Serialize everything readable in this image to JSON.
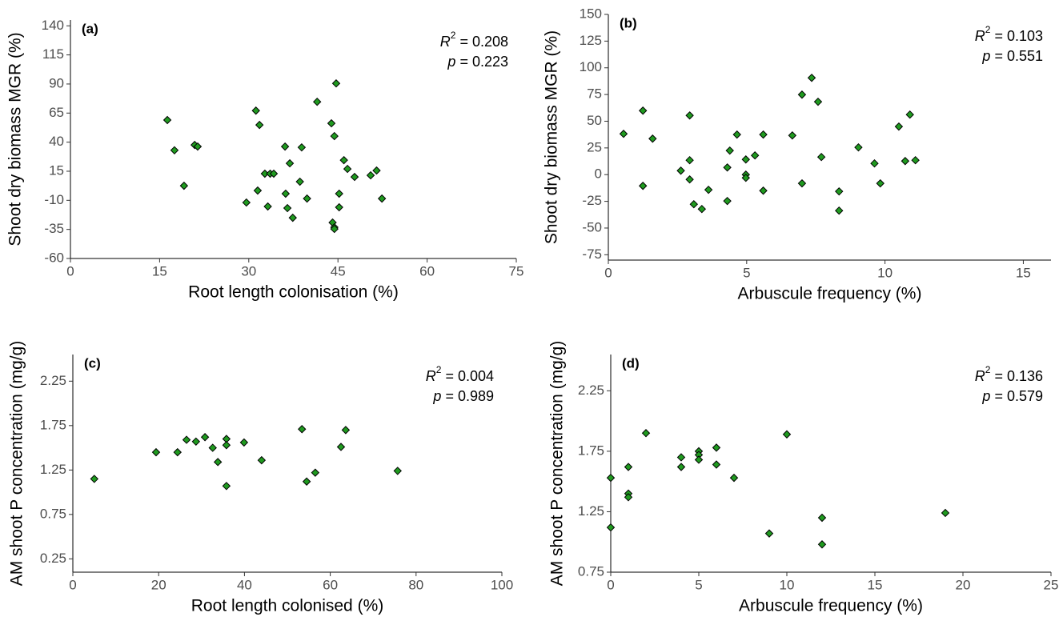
{
  "chart_data": [
    {
      "type": "scatter",
      "panel_label": "(a)",
      "x_label": "Root length colonisation (%)",
      "y_label": "Shoot dry biomass MGR (%)",
      "color": "#1f9a1f",
      "x": [
        16.3,
        17.5,
        19.1,
        20.9,
        21.4,
        29.6,
        31.2,
        31.5,
        31.8,
        32.7,
        33.2,
        33.6,
        34.2,
        36.1,
        36.2,
        36.5,
        36.9,
        37.4,
        38.6,
        38.9,
        39.8,
        41.5,
        43.9,
        44.1,
        44.4,
        44.4,
        44.4,
        44.7,
        45.2,
        45.2,
        46.0,
        46.6,
        47.8,
        50.5,
        51.5,
        52.4
      ],
      "values": [
        59,
        33,
        2.5,
        37.6,
        36.2,
        -11.9,
        67.1,
        -1.6,
        54.8,
        12.9,
        -15.3,
        12.9,
        12.9,
        36.2,
        -4.3,
        -16.7,
        21.8,
        -25,
        6,
        35.5,
        -8.5,
        74.7,
        56.2,
        -29.1,
        45.2,
        -33.2,
        -34.6,
        90.5,
        -4.3,
        -16,
        24.5,
        17,
        10.1,
        11.5,
        15.6,
        -8.5
      ],
      "xlim": [
        0,
        75
      ],
      "ylim": [
        -60,
        145
      ],
      "xticks": [
        0,
        15,
        30,
        45,
        60,
        75
      ],
      "yticks": [
        -60,
        -35,
        -10,
        15,
        40,
        65,
        90,
        115,
        140
      ],
      "stats": {
        "r_symbol": "R",
        "r_exponent": "2",
        "r_text": "= 0.208",
        "p_symbol": "p",
        "p_text": "= 0.223"
      }
    },
    {
      "type": "scatter",
      "panel_label": "(b)",
      "x_label": "Arbuscule frequency (%)",
      "y_label": "Shoot dry biomass MGR (%)",
      "color": "#1f9a1f",
      "x": [
        0.55,
        1.25,
        1.25,
        1.6,
        2.62,
        2.94,
        2.94,
        2.94,
        3.09,
        3.38,
        3.62,
        4.3,
        4.3,
        4.39,
        4.65,
        4.97,
        4.97,
        4.97,
        5.3,
        5.6,
        5.6,
        6.65,
        7.0,
        7.0,
        7.35,
        7.58,
        7.7,
        8.34,
        8.34,
        9.04,
        9.62,
        9.83,
        10.5,
        10.73,
        10.9,
        11.1
      ],
      "values": [
        38.2,
        59.9,
        -10.5,
        33.7,
        3.7,
        13.5,
        55.4,
        -4.5,
        -27.7,
        -32.2,
        -14.2,
        -24.7,
        6.7,
        22.5,
        37.5,
        14.2,
        0,
        -3,
        18,
        -15,
        37.5,
        36.7,
        -8.2,
        74.9,
        90.6,
        68.2,
        16.5,
        -15.7,
        -33.7,
        25.5,
        10.5,
        -8.2,
        45,
        12.7,
        56.2,
        13.5
      ],
      "xlim": [
        0,
        16
      ],
      "ylim": [
        -80,
        150
      ],
      "xticks": [
        0,
        5,
        10,
        15
      ],
      "yticks": [
        -75,
        -50,
        -25,
        0,
        25,
        50,
        75,
        100,
        125,
        150
      ],
      "stats": {
        "r_symbol": "R",
        "r_exponent": "2",
        "r_text": "= 0.103",
        "p_symbol": "p",
        "p_text": "= 0.551"
      }
    },
    {
      "type": "scatter",
      "panel_label": "(c)",
      "x_label": "Root length colonised (%)",
      "y_label": "AM shoot P concentration (mg/g)",
      "color": "#1f9a1f",
      "x": [
        5,
        19.4,
        24.4,
        26.5,
        28.7,
        30.8,
        32.6,
        33.8,
        35.8,
        35.8,
        35.8,
        39.9,
        44,
        53.4,
        54.5,
        56.5,
        62.5,
        63.6,
        75.7
      ],
      "values": [
        1.15,
        1.45,
        1.45,
        1.59,
        1.57,
        1.62,
        1.5,
        1.34,
        1.6,
        1.53,
        1.07,
        1.56,
        1.36,
        1.71,
        1.12,
        1.22,
        1.51,
        1.7,
        1.24
      ],
      "xlim": [
        0,
        100
      ],
      "ylim": [
        0.1,
        2.55
      ],
      "xticks": [
        0,
        20,
        40,
        60,
        80,
        100
      ],
      "yticks": [
        0.25,
        0.75,
        1.25,
        1.75,
        2.25
      ],
      "stats": {
        "r_symbol": "R",
        "r_exponent": "2",
        "r_text": "= 0.004",
        "p_symbol": "p",
        "p_text": "= 0.989"
      }
    },
    {
      "type": "scatter",
      "panel_label": "(d)",
      "x_label": "Arbuscule frequency (%)",
      "y_label": "AM shoot P concentration (mg/g)",
      "color": "#1f9a1f",
      "x": [
        0,
        0,
        1,
        1,
        1,
        2,
        4,
        4,
        5,
        5,
        5,
        6,
        6,
        7,
        9,
        10,
        12,
        12,
        19
      ],
      "values": [
        1.53,
        1.12,
        1.62,
        1.4,
        1.37,
        1.9,
        1.7,
        1.62,
        1.75,
        1.72,
        1.68,
        1.78,
        1.64,
        1.53,
        1.07,
        1.89,
        1.2,
        0.98,
        1.24
      ],
      "xlim": [
        0,
        25
      ],
      "ylim": [
        0.75,
        2.55
      ],
      "xticks": [
        0,
        5,
        10,
        15,
        20,
        25
      ],
      "yticks": [
        0.75,
        1.25,
        1.75,
        2.25
      ],
      "stats": {
        "r_symbol": "R",
        "r_exponent": "2",
        "r_text": "= 0.136",
        "p_symbol": "p",
        "p_text": "= 0.579"
      }
    }
  ]
}
